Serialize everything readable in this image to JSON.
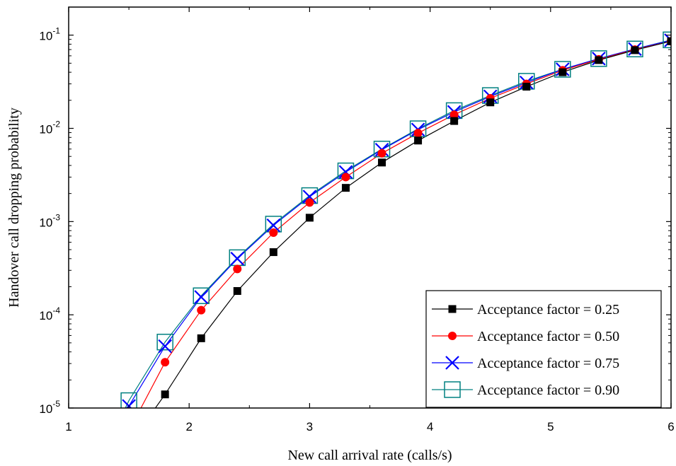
{
  "chart_data": {
    "type": "line",
    "xlabel": "New call arrival rate (calls/s)",
    "ylabel": "Handover call dropping probability",
    "xlim": [
      1,
      6
    ],
    "ylim": [
      1e-05,
      0.2
    ],
    "yscale": "log",
    "x_ticks": [
      "1",
      "2",
      "3",
      "4",
      "5",
      "6"
    ],
    "y_ticks": [
      {
        "base": "10",
        "exp": "-5",
        "value": 1e-05
      },
      {
        "base": "10",
        "exp": "-4",
        "value": 0.0001
      },
      {
        "base": "10",
        "exp": "-3",
        "value": 0.001
      },
      {
        "base": "10",
        "exp": "-2",
        "value": 0.01
      },
      {
        "base": "10",
        "exp": "-1",
        "value": 0.1
      }
    ],
    "grid": false,
    "legend_position": "bottom-right",
    "x": [
      1.5,
      1.8,
      2.1,
      2.4,
      2.7,
      3.0,
      3.3,
      3.6,
      3.9,
      4.2,
      4.5,
      4.8,
      5.1,
      5.4,
      5.7,
      6.0
    ],
    "series": [
      {
        "name": "Acceptance factor = 0.25",
        "color": "#000000",
        "marker": "square",
        "x": [
          1.8,
          2.1,
          2.4,
          2.7,
          3.0,
          3.3,
          3.6,
          3.9,
          4.2,
          4.5,
          4.8,
          5.1,
          5.4,
          5.7,
          6.0
        ],
        "values": [
          1.4e-05,
          5.6e-05,
          0.00018,
          0.00047,
          0.0011,
          0.0023,
          0.0043,
          0.0074,
          0.012,
          0.019,
          0.028,
          0.04,
          0.054,
          0.069,
          0.086
        ],
        "line_start": [
          1.72,
          1e-05
        ]
      },
      {
        "name": "Acceptance factor = 0.50",
        "color": "#ff0000",
        "marker": "circle",
        "x": [
          1.8,
          2.1,
          2.4,
          2.7,
          3.0,
          3.3,
          3.6,
          3.9,
          4.2,
          4.5,
          4.8,
          5.1,
          5.4,
          5.7,
          6.0
        ],
        "values": [
          3.1e-05,
          0.000112,
          0.00031,
          0.00076,
          0.0016,
          0.003,
          0.0054,
          0.0089,
          0.014,
          0.021,
          0.03,
          0.042,
          0.055,
          0.07,
          0.086
        ],
        "line_start": [
          1.6,
          1e-05
        ]
      },
      {
        "name": "Acceptance factor = 0.75",
        "color": "#0000ff",
        "marker": "x",
        "x": [
          1.5,
          1.8,
          2.1,
          2.4,
          2.7,
          3.0,
          3.3,
          3.6,
          3.9,
          4.2,
          4.5,
          4.8,
          5.1,
          5.4,
          5.7,
          6.0
        ],
        "values": [
          1.05e-05,
          4.6e-05,
          0.000155,
          0.0004,
          0.00091,
          0.00185,
          0.0034,
          0.0059,
          0.0097,
          0.015,
          0.022,
          0.031,
          0.043,
          0.056,
          0.071,
          0.088
        ],
        "line_start": null
      },
      {
        "name": "Acceptance factor = 0.90",
        "color": "#008080",
        "marker": "open-square",
        "x": [
          1.5,
          1.8,
          2.1,
          2.4,
          2.7,
          3.0,
          3.3,
          3.6,
          3.9,
          4.2,
          4.5,
          4.8,
          5.1,
          5.4,
          5.7,
          6.0
        ],
        "values": [
          1.2e-05,
          5.1e-05,
          0.00016,
          0.00041,
          0.00094,
          0.0019,
          0.0035,
          0.006,
          0.0099,
          0.0155,
          0.0225,
          0.032,
          0.043,
          0.056,
          0.071,
          0.089
        ],
        "line_start": [
          1.47,
          1e-05
        ]
      }
    ]
  }
}
